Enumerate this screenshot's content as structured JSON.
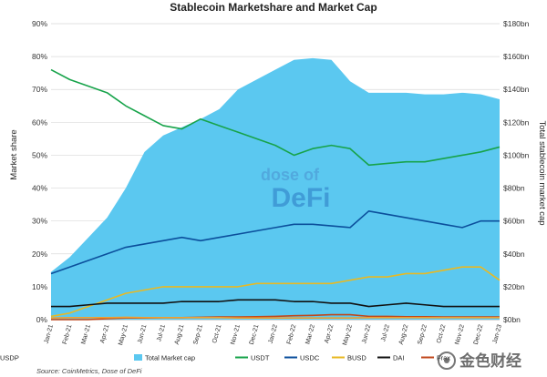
{
  "chart_data": {
    "type": "line",
    "title": "Stablecoin Marketshare and Market Cap",
    "ylabel": "Market share",
    "y2label": "Total stablecoin market cap",
    "ylim": [
      0,
      90
    ],
    "y2lim": [
      0,
      180
    ],
    "yticks": [
      "0%",
      "10%",
      "20%",
      "30%",
      "40%",
      "50%",
      "60%",
      "70%",
      "80%",
      "90%"
    ],
    "y2ticks": [
      "$0bn",
      "$20bn",
      "$40bn",
      "$60bn",
      "$80bn",
      "$100bn",
      "$120bn",
      "$140bn",
      "$160bn",
      "$180bn"
    ],
    "x": [
      "Jan-21",
      "Feb-21",
      "Mar-21",
      "Apr-21",
      "May-21",
      "Jun-21",
      "Jul-21",
      "Aug-21",
      "Sep-21",
      "Oct-21",
      "Nov-21",
      "Dec-21",
      "Jan-22",
      "Feb-22",
      "Mar-22",
      "Apr-22",
      "May-22",
      "Jun-22",
      "Jul-22",
      "Aug-22",
      "Sep-22",
      "Oct-22",
      "Nov-22",
      "Dec-22",
      "Jan-23"
    ],
    "grid": true,
    "legend_position": "bottom",
    "area": {
      "name": "Total Market cap",
      "axis": "right",
      "color": "#5bc8f0",
      "values": [
        29,
        38,
        50,
        62,
        80,
        102,
        112,
        117,
        122,
        128,
        140,
        146,
        152,
        158,
        159,
        158,
        145,
        138,
        138,
        138,
        137,
        137,
        138,
        137,
        134
      ]
    },
    "series": [
      {
        "name": "USDT",
        "color": "#17a34a",
        "values": [
          76,
          73,
          71,
          69,
          65,
          62,
          59,
          58,
          61,
          59,
          57,
          55,
          53,
          50,
          52,
          53,
          52,
          47,
          47.5,
          48,
          48,
          49,
          50,
          51,
          52.5
        ]
      },
      {
        "name": "USDC",
        "color": "#0b4f9c",
        "values": [
          14,
          16,
          18,
          20,
          22,
          23,
          24,
          25,
          24,
          25,
          26,
          27,
          28,
          29,
          29,
          28.5,
          28,
          33,
          32,
          31,
          30,
          29,
          28,
          30,
          30
        ]
      },
      {
        "name": "BUSD",
        "color": "#e8b923",
        "values": [
          1,
          2,
          4,
          6,
          8,
          9,
          10,
          10,
          10,
          10,
          10,
          11,
          11,
          11,
          11,
          11,
          12,
          13,
          13,
          14,
          14,
          15,
          16,
          16,
          12
        ]
      },
      {
        "name": "DAI",
        "color": "#111111",
        "values": [
          4,
          4,
          4.5,
          5,
          5,
          5,
          5,
          5.5,
          5.5,
          5.5,
          6,
          6,
          6,
          5.5,
          5.5,
          5,
          5,
          4,
          4.5,
          5,
          4.5,
          4,
          4,
          4,
          4
        ]
      },
      {
        "name": "Frax",
        "color": "#c0471c",
        "values": [
          0,
          0,
          0,
          0.3,
          0.5,
          0.5,
          0.6,
          0.6,
          0.7,
          0.8,
          0.8,
          0.9,
          1,
          1.2,
          1.3,
          1.5,
          1.5,
          1,
          1,
          0.9,
          0.9,
          0.8,
          0.8,
          0.8,
          0.8
        ]
      },
      {
        "name": "USDP",
        "color": "#f0a030",
        "values": [
          0.5,
          0.6,
          0.6,
          0.6,
          0.7,
          0.6,
          0.6,
          0.6,
          0.6,
          0.6,
          0.5,
          0.5,
          0.5,
          0.5,
          0.5,
          0.5,
          0.5,
          0.6,
          0.6,
          0.6,
          0.6,
          0.6,
          0.6,
          0.6,
          0.6
        ]
      }
    ],
    "source": "Source: CoinMetrics, Dose of DeFi",
    "watermark": {
      "line1": "dose of",
      "line2": "DeFi",
      "corner": "金色财经"
    }
  }
}
